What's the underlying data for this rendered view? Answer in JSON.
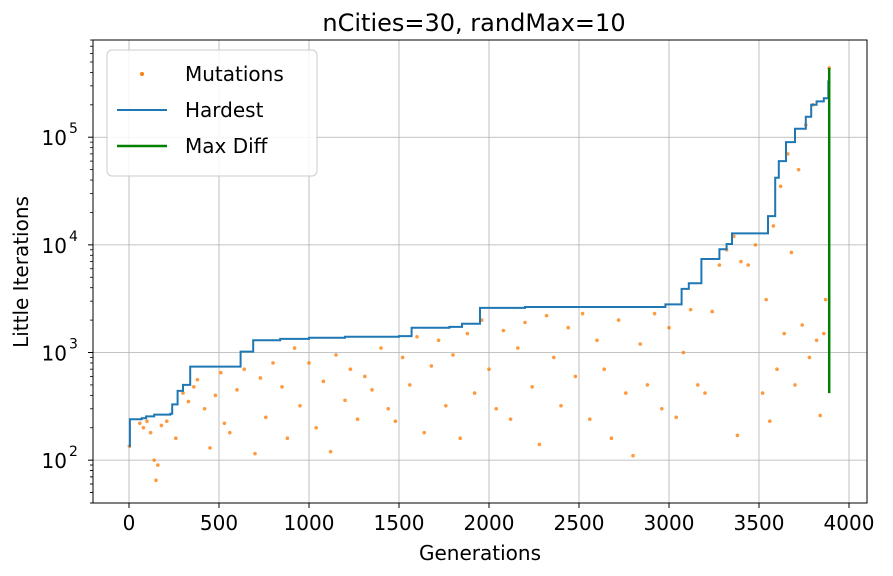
{
  "chart_data": {
    "type": "scatter",
    "title": "nCities=30, randMax=10",
    "xlabel": "Generations",
    "ylabel": "Little Iterations",
    "xlim": [
      -200,
      4100
    ],
    "ylim": [
      40,
      800000
    ],
    "yscale": "log",
    "grid": true,
    "legend_position": "top-left",
    "x_ticks": [
      0,
      500,
      1000,
      1500,
      2000,
      2500,
      3000,
      3500,
      4000
    ],
    "x_tick_labels": [
      "0",
      "500",
      "1000",
      "1500",
      "2000",
      "2500",
      "3000",
      "3500",
      "4000"
    ],
    "y_ticks": [
      100,
      1000,
      10000,
      100000
    ],
    "y_tick_labels": [
      {
        "base": "10",
        "exp": "2"
      },
      {
        "base": "10",
        "exp": "3"
      },
      {
        "base": "10",
        "exp": "4"
      },
      {
        "base": "10",
        "exp": "5"
      }
    ],
    "legend": [
      {
        "label": "Mutations",
        "kind": "scatter",
        "color": "#ff7f0e"
      },
      {
        "label": "Hardest",
        "kind": "line",
        "color": "#1f77b4"
      },
      {
        "label": "Max Diff",
        "kind": "line",
        "color": "#008000"
      }
    ],
    "series": [
      {
        "name": "Hardest",
        "kind": "step-line",
        "color": "#1f77b4",
        "points": [
          [
            0,
            135
          ],
          [
            5,
            240
          ],
          [
            70,
            245
          ],
          [
            95,
            255
          ],
          [
            140,
            265
          ],
          [
            230,
            270
          ],
          [
            240,
            330
          ],
          [
            270,
            440
          ],
          [
            300,
            500
          ],
          [
            340,
            740
          ],
          [
            620,
            1020
          ],
          [
            690,
            1300
          ],
          [
            840,
            1340
          ],
          [
            1000,
            1370
          ],
          [
            1200,
            1400
          ],
          [
            1500,
            1420
          ],
          [
            1570,
            1700
          ],
          [
            1780,
            1730
          ],
          [
            1850,
            1850
          ],
          [
            1950,
            2600
          ],
          [
            2200,
            2650
          ],
          [
            2980,
            2800
          ],
          [
            3070,
            3900
          ],
          [
            3110,
            4400
          ],
          [
            3180,
            7400
          ],
          [
            3280,
            9100
          ],
          [
            3320,
            10200
          ],
          [
            3350,
            12800
          ],
          [
            3550,
            18500
          ],
          [
            3590,
            42000
          ],
          [
            3610,
            60000
          ],
          [
            3650,
            90000
          ],
          [
            3700,
            120000
          ],
          [
            3760,
            155000
          ],
          [
            3790,
            200000
          ],
          [
            3820,
            215000
          ],
          [
            3860,
            230000
          ],
          [
            3885,
            330000
          ],
          [
            3890,
            440000
          ]
        ]
      },
      {
        "name": "Max Diff",
        "kind": "vertical-line",
        "color": "#008000",
        "x": 3890,
        "y_from": 420,
        "y_to": 440000
      },
      {
        "name": "Mutations",
        "kind": "scatter",
        "color": "#ff7f0e",
        "points": [
          [
            2,
            135
          ],
          [
            60,
            220
          ],
          [
            80,
            200
          ],
          [
            100,
            230
          ],
          [
            120,
            180
          ],
          [
            140,
            100
          ],
          [
            150,
            65
          ],
          [
            160,
            90
          ],
          [
            180,
            210
          ],
          [
            210,
            230
          ],
          [
            260,
            160
          ],
          [
            300,
            420
          ],
          [
            330,
            350
          ],
          [
            360,
            480
          ],
          [
            380,
            560
          ],
          [
            420,
            300
          ],
          [
            450,
            130
          ],
          [
            480,
            400
          ],
          [
            510,
            650
          ],
          [
            530,
            220
          ],
          [
            560,
            180
          ],
          [
            600,
            450
          ],
          [
            640,
            700
          ],
          [
            700,
            115
          ],
          [
            730,
            580
          ],
          [
            760,
            250
          ],
          [
            800,
            800
          ],
          [
            850,
            480
          ],
          [
            880,
            160
          ],
          [
            920,
            1100
          ],
          [
            950,
            320
          ],
          [
            1000,
            800
          ],
          [
            1040,
            200
          ],
          [
            1080,
            540
          ],
          [
            1120,
            120
          ],
          [
            1150,
            950
          ],
          [
            1200,
            360
          ],
          [
            1230,
            700
          ],
          [
            1270,
            240
          ],
          [
            1310,
            600
          ],
          [
            1350,
            450
          ],
          [
            1400,
            1100
          ],
          [
            1440,
            300
          ],
          [
            1480,
            230
          ],
          [
            1520,
            900
          ],
          [
            1560,
            500
          ],
          [
            1600,
            1400
          ],
          [
            1640,
            180
          ],
          [
            1680,
            750
          ],
          [
            1720,
            1300
          ],
          [
            1760,
            320
          ],
          [
            1800,
            950
          ],
          [
            1840,
            160
          ],
          [
            1880,
            1500
          ],
          [
            1920,
            420
          ],
          [
            1960,
            2000
          ],
          [
            2000,
            700
          ],
          [
            2040,
            300
          ],
          [
            2080,
            1600
          ],
          [
            2120,
            240
          ],
          [
            2160,
            1100
          ],
          [
            2200,
            1900
          ],
          [
            2240,
            480
          ],
          [
            2280,
            140
          ],
          [
            2320,
            2200
          ],
          [
            2360,
            900
          ],
          [
            2400,
            320
          ],
          [
            2440,
            1700
          ],
          [
            2480,
            600
          ],
          [
            2520,
            2300
          ],
          [
            2560,
            240
          ],
          [
            2600,
            1300
          ],
          [
            2640,
            700
          ],
          [
            2680,
            160
          ],
          [
            2720,
            2000
          ],
          [
            2760,
            420
          ],
          [
            2800,
            110
          ],
          [
            2840,
            1200
          ],
          [
            2880,
            500
          ],
          [
            2920,
            2300
          ],
          [
            2960,
            300
          ],
          [
            3000,
            1700
          ],
          [
            3040,
            250
          ],
          [
            3080,
            1000
          ],
          [
            3120,
            2500
          ],
          [
            3160,
            500
          ],
          [
            3200,
            420
          ],
          [
            3240,
            2400
          ],
          [
            3280,
            6500
          ],
          [
            3320,
            9000
          ],
          [
            3360,
            12000
          ],
          [
            3380,
            170
          ],
          [
            3400,
            7000
          ],
          [
            3440,
            6500
          ],
          [
            3480,
            10000
          ],
          [
            3520,
            420
          ],
          [
            3540,
            3100
          ],
          [
            3560,
            230
          ],
          [
            3580,
            15000
          ],
          [
            3600,
            700
          ],
          [
            3620,
            35000
          ],
          [
            3640,
            1500
          ],
          [
            3660,
            70000
          ],
          [
            3680,
            8500
          ],
          [
            3700,
            500
          ],
          [
            3720,
            50000
          ],
          [
            3740,
            1800
          ],
          [
            3760,
            130000
          ],
          [
            3780,
            900
          ],
          [
            3800,
            200000
          ],
          [
            3820,
            1300
          ],
          [
            3840,
            260
          ],
          [
            3860,
            1500
          ],
          [
            3870,
            3100
          ],
          [
            3890,
            440000
          ]
        ]
      }
    ]
  }
}
